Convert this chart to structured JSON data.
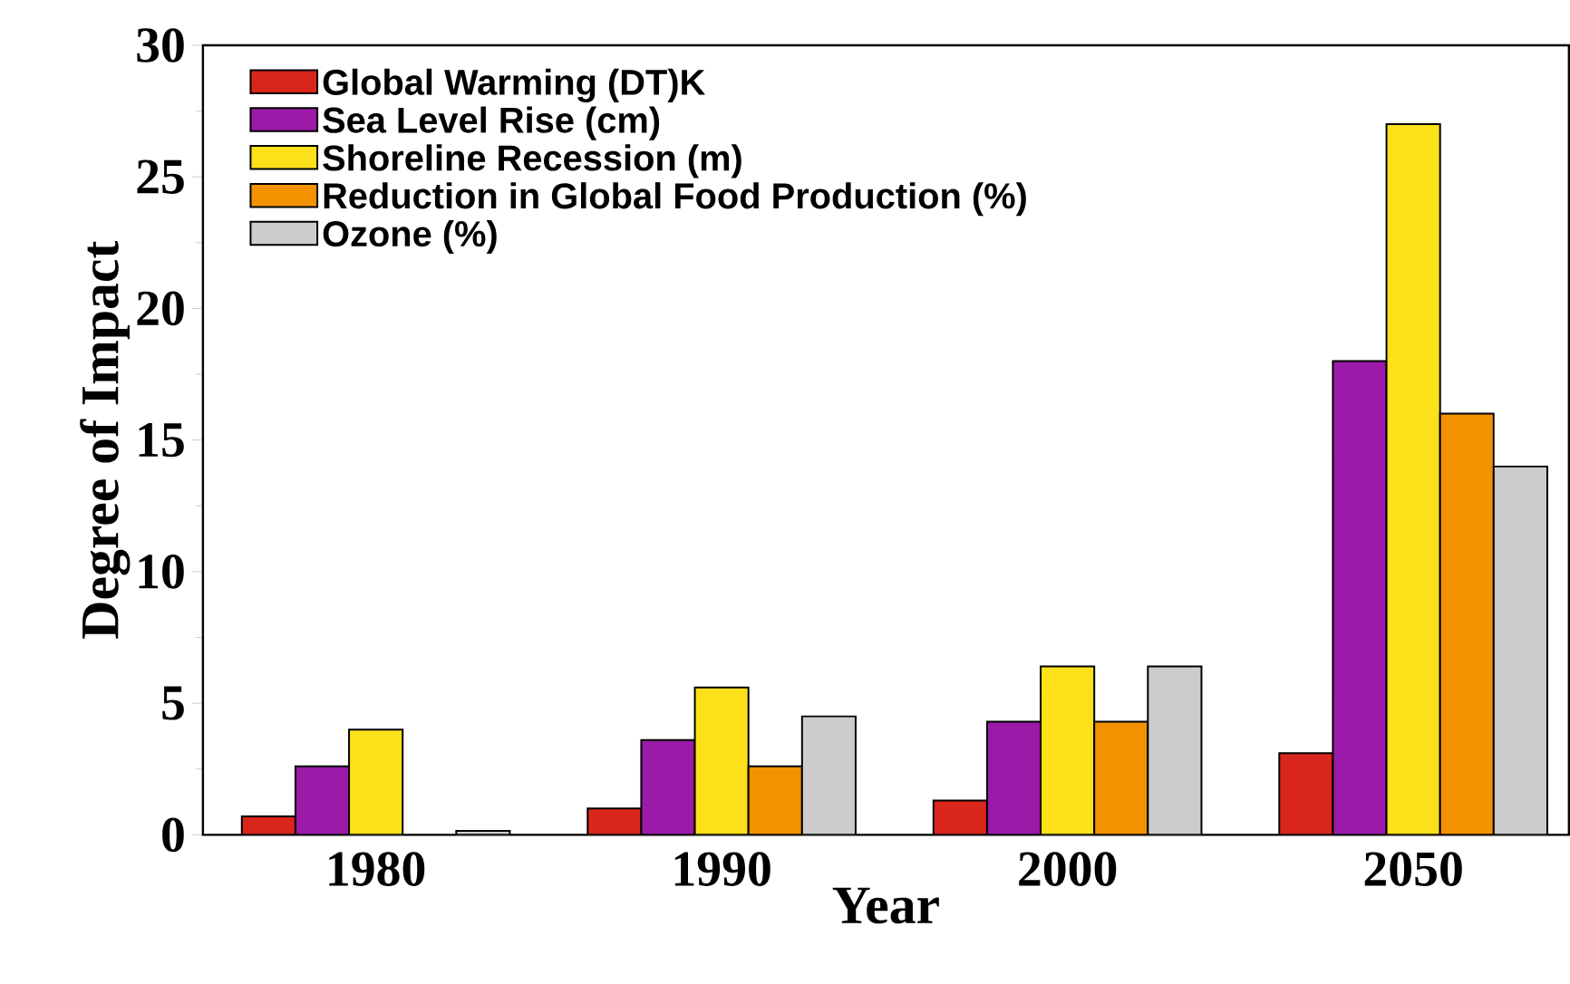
{
  "chart_data": {
    "type": "bar",
    "xlabel": "Year",
    "ylabel": "Degree of Impact",
    "categories": [
      "1980",
      "1990",
      "2000",
      "2050"
    ],
    "series": [
      {
        "name": "Global Warming (DT)K",
        "color": "#d9261c",
        "values": [
          0.7,
          1.0,
          1.3,
          3.1
        ]
      },
      {
        "name": "Sea Level Rise (cm)",
        "color": "#9b1aa8",
        "values": [
          2.6,
          3.6,
          4.3,
          18
        ]
      },
      {
        "name": "Shoreline Recession (m)",
        "color": "#fce01a",
        "values": [
          4.0,
          5.6,
          6.4,
          27
        ]
      },
      {
        "name": "Reduction in Global Food Production (%)",
        "color": "#f39200",
        "values": [
          null,
          2.6,
          4.3,
          16
        ]
      },
      {
        "name": "Ozone (%)",
        "color": "#cccccc",
        "values": [
          0.15,
          4.5,
          6.4,
          14
        ]
      }
    ],
    "ylim": [
      0,
      30
    ],
    "yticks": [
      0,
      5,
      10,
      15,
      20,
      25,
      30
    ],
    "legend": "top left",
    "grid": false
  }
}
